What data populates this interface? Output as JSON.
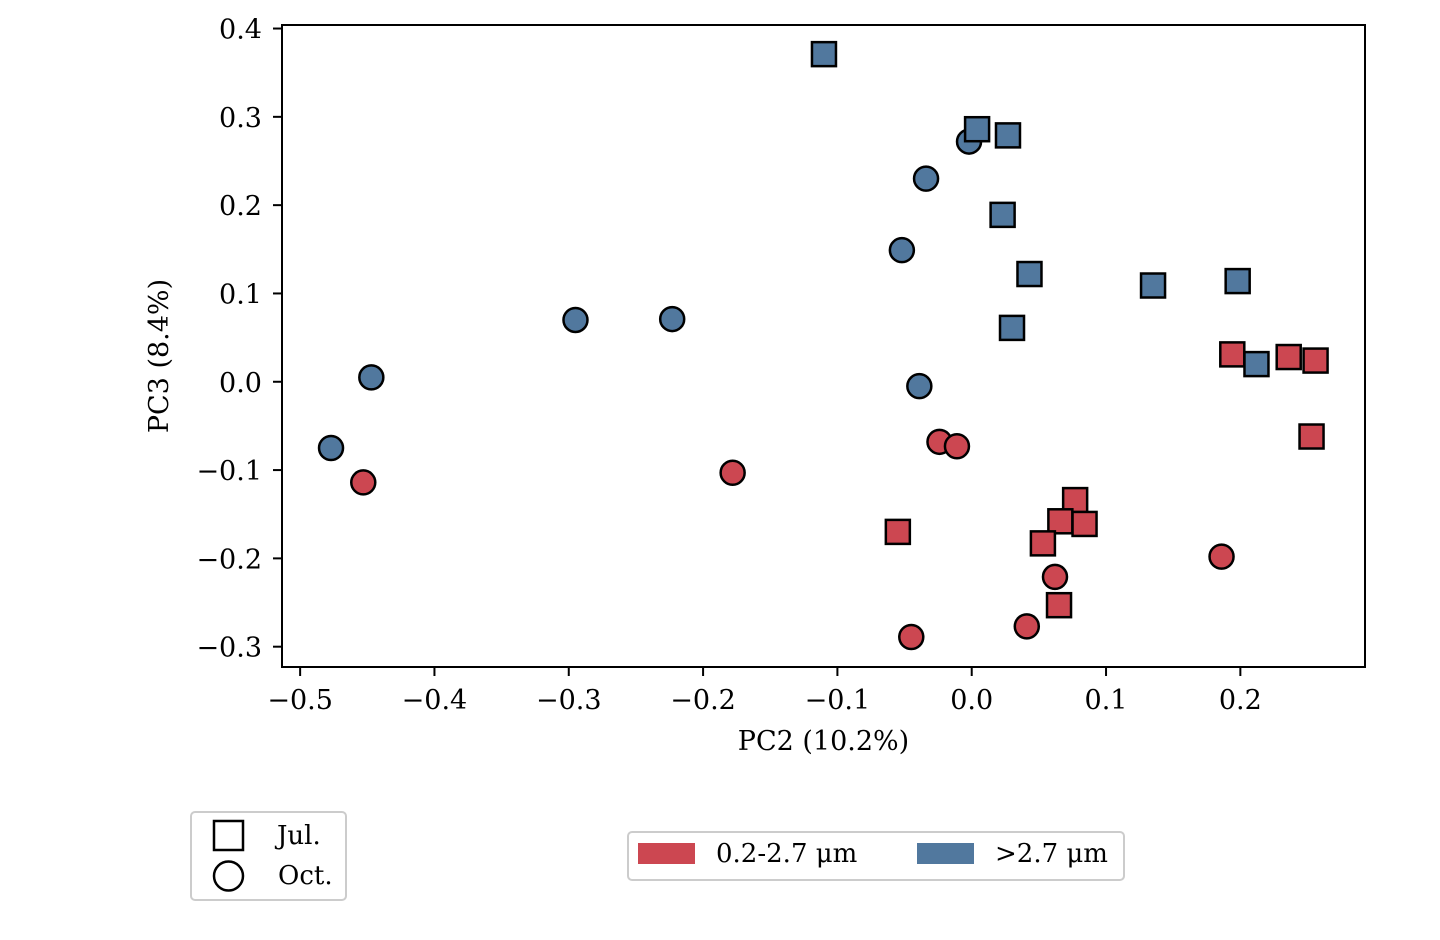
{
  "chart_data": {
    "type": "scatter",
    "title": "",
    "xlabel": "PC2 (10.2%)",
    "ylabel": "PC3 (8.4%)",
    "xlim": [
      -0.5135,
      0.2928
    ],
    "ylim": [
      -0.323,
      0.404
    ],
    "grid": false,
    "xticks": [
      {
        "value": -0.5,
        "label": "−0.5"
      },
      {
        "value": -0.4,
        "label": "−0.4"
      },
      {
        "value": -0.3,
        "label": "−0.3"
      },
      {
        "value": -0.2,
        "label": "−0.2"
      },
      {
        "value": -0.1,
        "label": "−0.1"
      },
      {
        "value": 0.0,
        "label": "0.0"
      },
      {
        "value": 0.1,
        "label": "0.1"
      },
      {
        "value": 0.2,
        "label": "0.2"
      }
    ],
    "yticks": [
      {
        "value": 0.4,
        "label": "0.4"
      },
      {
        "value": 0.3,
        "label": "0.3"
      },
      {
        "value": 0.2,
        "label": "0.2"
      },
      {
        "value": 0.1,
        "label": "0.1"
      },
      {
        "value": 0.0,
        "label": "0.0"
      },
      {
        "value": -0.1,
        "label": "−0.1"
      },
      {
        "value": -0.2,
        "label": "−0.2"
      },
      {
        "value": -0.3,
        "label": "−0.3"
      }
    ],
    "colors": {
      "small": "#CC4751",
      "large": "#51789E",
      "edge": "#000000"
    },
    "series": [
      {
        "name": "0.2-2.7 μm, Oct.",
        "size_fraction": "small",
        "month": "Oct.",
        "marker": "circle",
        "points": [
          [
            -0.453,
            -0.114
          ],
          [
            -0.178,
            -0.103
          ],
          [
            -0.024,
            -0.068
          ],
          [
            -0.011,
            -0.073
          ],
          [
            0.186,
            -0.198
          ],
          [
            0.062,
            -0.221
          ],
          [
            0.041,
            -0.277
          ],
          [
            -0.045,
            -0.289
          ]
        ]
      },
      {
        "name": ">2.7 μm, Oct.",
        "size_fraction": "large",
        "month": "Oct.",
        "marker": "circle",
        "points": [
          [
            -0.002,
            0.272
          ],
          [
            -0.034,
            0.23
          ],
          [
            -0.052,
            0.149
          ],
          [
            -0.039,
            -0.005
          ],
          [
            -0.223,
            0.071
          ],
          [
            -0.295,
            0.07
          ],
          [
            -0.447,
            0.005
          ],
          [
            -0.477,
            -0.075
          ]
        ]
      },
      {
        "name": "0.2-2.7 μm, Jul.",
        "size_fraction": "small",
        "month": "Jul.",
        "marker": "square",
        "points": [
          [
            -0.055,
            -0.17
          ],
          [
            0.077,
            -0.134
          ],
          [
            0.066,
            -0.158
          ],
          [
            0.084,
            -0.161
          ],
          [
            0.053,
            -0.183
          ],
          [
            0.065,
            -0.253
          ],
          [
            0.194,
            0.031
          ],
          [
            0.236,
            0.028
          ],
          [
            0.256,
            0.024
          ],
          [
            0.253,
            -0.062
          ]
        ]
      },
      {
        "name": ">2.7 μm, Jul.",
        "size_fraction": "large",
        "month": "Jul.",
        "marker": "square",
        "points": [
          [
            -0.11,
            0.371
          ],
          [
            0.004,
            0.286
          ],
          [
            0.027,
            0.279
          ],
          [
            0.023,
            0.189
          ],
          [
            0.043,
            0.122
          ],
          [
            0.03,
            0.061
          ],
          [
            0.135,
            0.109
          ],
          [
            0.198,
            0.114
          ],
          [
            0.212,
            0.02
          ]
        ]
      }
    ],
    "legends": {
      "marker_legend": {
        "placement": "bottom-left",
        "entries": [
          {
            "label": "Jul.",
            "marker": "square"
          },
          {
            "label": "Oct.",
            "marker": "circle"
          }
        ]
      },
      "color_legend": {
        "placement": "bottom-center",
        "entries": [
          {
            "label": "0.2-2.7 μm",
            "color": "#CC4751"
          },
          {
            "label": ">2.7 μm",
            "color": "#51789E"
          }
        ]
      }
    }
  }
}
